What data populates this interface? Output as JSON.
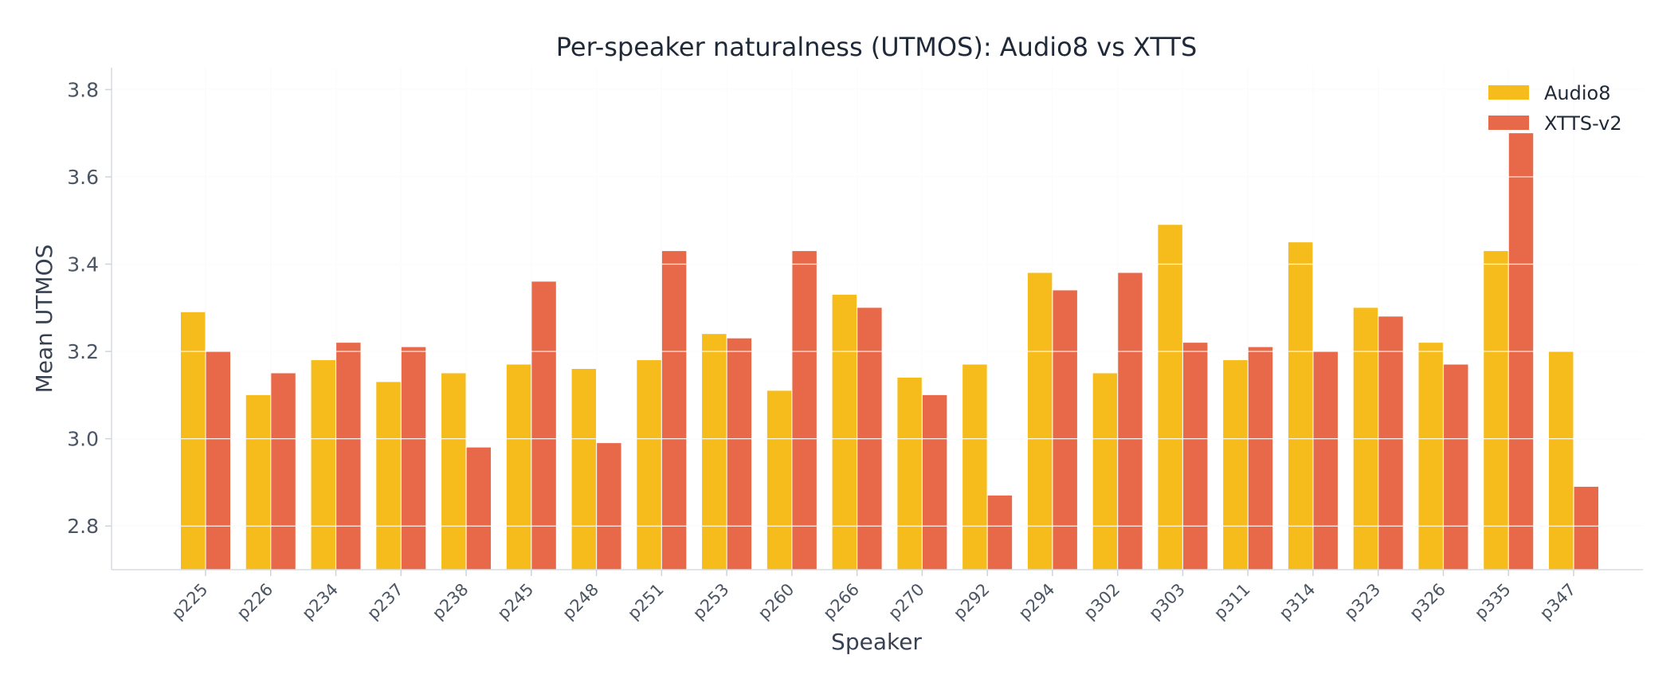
{
  "chart_data": {
    "type": "bar",
    "title": "Per-speaker naturalness (UTMOS): Audio8 vs XTTS",
    "xlabel": "Speaker",
    "ylabel": "Mean UTMOS",
    "ylim": [
      2.7,
      3.85
    ],
    "yticks": [
      "2.8",
      "3.0",
      "3.2",
      "3.4",
      "3.6",
      "3.8"
    ],
    "grid": true,
    "legend_position": "top-right",
    "categories": [
      "p225",
      "p226",
      "p234",
      "p237",
      "p238",
      "p245",
      "p248",
      "p251",
      "p253",
      "p260",
      "p266",
      "p270",
      "p292",
      "p294",
      "p302",
      "p303",
      "p311",
      "p314",
      "p323",
      "p326",
      "p335",
      "p347"
    ],
    "series": [
      {
        "name": "Audio8",
        "color": "#f5bc1c",
        "values": [
          3.29,
          3.1,
          3.18,
          3.13,
          3.15,
          3.17,
          3.16,
          3.18,
          3.24,
          3.11,
          3.33,
          3.14,
          3.17,
          3.38,
          3.15,
          3.49,
          3.18,
          3.45,
          3.3,
          3.22,
          3.43,
          3.2
        ]
      },
      {
        "name": "XTTS-v2",
        "color": "#e8694a",
        "values": [
          3.2,
          3.15,
          3.22,
          3.21,
          2.98,
          3.36,
          2.99,
          3.43,
          3.23,
          3.43,
          3.3,
          3.1,
          2.87,
          3.34,
          3.38,
          3.22,
          3.21,
          3.2,
          3.28,
          3.17,
          3.7,
          2.89
        ]
      }
    ]
  }
}
